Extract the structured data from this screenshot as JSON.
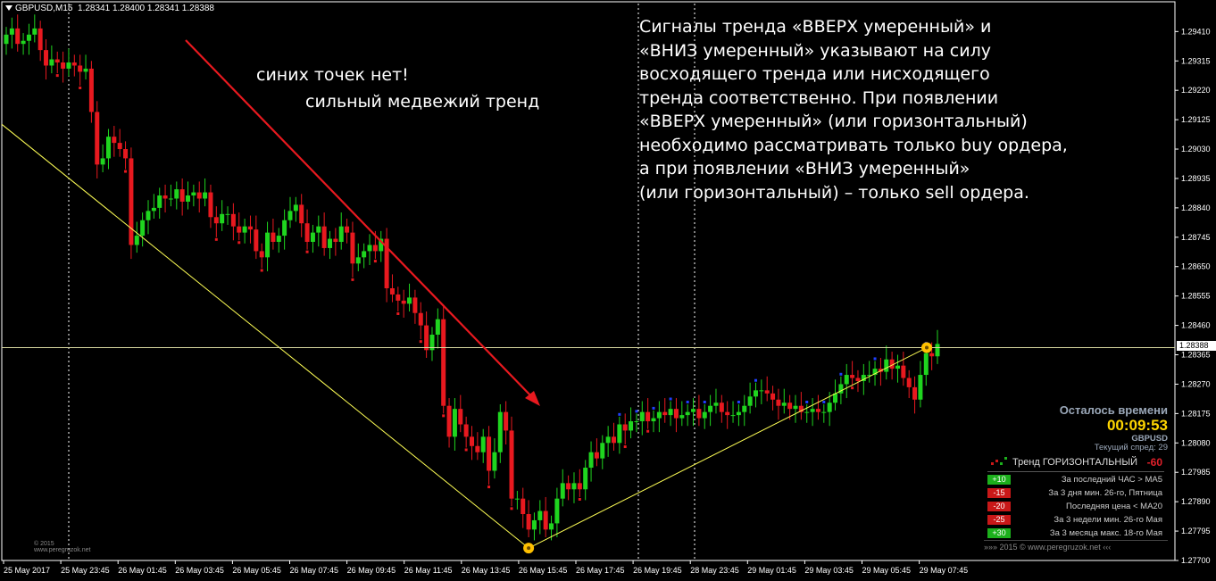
{
  "header": {
    "symbol": "GBPUSD,M15",
    "ohlc": "1.28341 1.28400 1.28341 1.28388"
  },
  "annotations": {
    "left_line1": "синих точек нет!",
    "left_line2": "сильный медвежий тренд",
    "right_text": [
      "Сигналы тренда «ВВЕРХ умеренный» и",
      "«ВНИЗ умеренный» указывают на силу",
      "восходящего тренда или нисходящего",
      "тренда соответственно. При появлении",
      "«ВВЕРХ умеренный» (или горизонтальный)",
      "необходимо рассматривать только buy ордера,",
      "а при появлении «ВНИЗ умеренный»",
      "(или горизонтальный) – только sell ордера."
    ]
  },
  "panel": {
    "timer_title": "Осталось времени",
    "timer_value": "00:09:53",
    "pair": "GBPUSD",
    "spread": "Текущий спред: 29",
    "trend_label": "Тренд ГОРИЗОНТАЛЬНЫЙ",
    "trend_score": "-60",
    "factors": [
      {
        "badge": "+10",
        "label": "За последний ЧАС > MA5",
        "color": "#1cb01c"
      },
      {
        "badge": "-15",
        "label": "За 3 дня мин. 26-го, Пятница",
        "color": "#c81818"
      },
      {
        "badge": "-20",
        "label": "Последняя цена < MA20",
        "color": "#c81818"
      },
      {
        "badge": "-25",
        "label": "За 3 недели мин. 26-го Мая",
        "color": "#c81818"
      },
      {
        "badge": "+30",
        "label": "За 3 месяца макс. 18-го Мая",
        "color": "#1cb01c"
      }
    ],
    "footer": "»»»   2015  ©  www.peregruzok.net   ‹‹‹"
  },
  "copyright": "© 2015\nwww.peregruzok.net",
  "current_price": "1.28388",
  "colors": {
    "bull": "#1fd51f",
    "bear": "#e8191f",
    "trendline": "#ffff55",
    "arrow": "#e8191f",
    "marker": "#ffc000"
  },
  "chart_data": {
    "type": "candlestick",
    "symbol": "GBPUSD",
    "timeframe": "M15",
    "ylim": [
      1.277,
      1.2946
    ],
    "y_ticks": [
      "1.29410",
      "1.29315",
      "1.29220",
      "1.29125",
      "1.29030",
      "1.28935",
      "1.28840",
      "1.28745",
      "1.28650",
      "1.28555",
      "1.28460",
      "1.28365",
      "1.28270",
      "1.28175",
      "1.28080",
      "1.27985",
      "1.27890",
      "1.27795",
      "1.27700"
    ],
    "x_ticks": [
      "25 May 2017",
      "25 May 23:45",
      "26 May 01:45",
      "26 May 03:45",
      "26 May 05:45",
      "26 May 07:45",
      "26 May 09:45",
      "26 May 11:45",
      "26 May 13:45",
      "26 May 15:45",
      "26 May 17:45",
      "26 May 19:45",
      "28 May 23:45",
      "29 May 01:45",
      "29 May 03:45",
      "29 May 05:45",
      "29 May 07:45"
    ],
    "candles_close": [
      1.294,
      1.2942,
      1.2937,
      1.2938,
      1.294,
      1.2942,
      1.2935,
      1.293,
      1.2932,
      1.2931,
      1.2929,
      1.2931,
      1.293,
      1.2928,
      1.2929,
      1.2915,
      1.2898,
      1.29,
      1.2907,
      1.2905,
      1.2903,
      1.29,
      1.2872,
      1.2875,
      1.288,
      1.2883,
      1.2884,
      1.2888,
      1.2887,
      1.2887,
      1.289,
      1.2886,
      1.2888,
      1.2889,
      1.2887,
      1.2889,
      1.2881,
      1.2879,
      1.2882,
      1.2882,
      1.2878,
      1.2876,
      1.2878,
      1.2877,
      1.287,
      1.2868,
      1.2876,
      1.2873,
      1.2875,
      1.288,
      1.2883,
      1.2885,
      1.2879,
      1.2873,
      1.2876,
      1.2878,
      1.2871,
      1.2874,
      1.2873,
      1.2878,
      1.2876,
      1.2866,
      1.2868,
      1.287,
      1.2872,
      1.287,
      1.2874,
      1.2858,
      1.2856,
      1.2854,
      1.2853,
      1.2855,
      1.285,
      1.2846,
      1.2838,
      1.2843,
      1.2848,
      1.282,
      1.281,
      1.2819,
      1.2814,
      1.281,
      1.2807,
      1.2805,
      1.281,
      1.2799,
      1.2805,
      1.2818,
      1.2812,
      1.279,
      1.279,
      1.2785,
      1.278,
      1.2783,
      1.2786,
      1.278,
      1.2782,
      1.279,
      1.2795,
      1.2793,
      1.2795,
      1.2793,
      1.28,
      1.2805,
      1.2803,
      1.2808,
      1.281,
      1.2808,
      1.2814,
      1.2812,
      1.2815,
      1.2815,
      1.2818,
      1.2815,
      1.2816,
      1.2818,
      1.2817,
      1.2819,
      1.2816,
      1.2817,
      1.2818,
      1.2819,
      1.2816,
      1.2818,
      1.282,
      1.2821,
      1.2818,
      1.2817,
      1.2817,
      1.2818,
      1.282,
      1.2823,
      1.2825,
      1.2825,
      1.2824,
      1.2822,
      1.282,
      1.2821,
      1.2819,
      1.282,
      1.2818,
      1.2818,
      1.2819,
      1.2818,
      1.2818,
      1.2821,
      1.2824,
      1.2827,
      1.283,
      1.2829,
      1.2828,
      1.283,
      1.283,
      1.2832,
      1.2831,
      1.2835,
      1.2832,
      1.2833,
      1.2829,
      1.2826,
      1.2822,
      1.283,
      1.2837,
      1.2836,
      1.284
    ],
    "current_price": 1.28388
  }
}
